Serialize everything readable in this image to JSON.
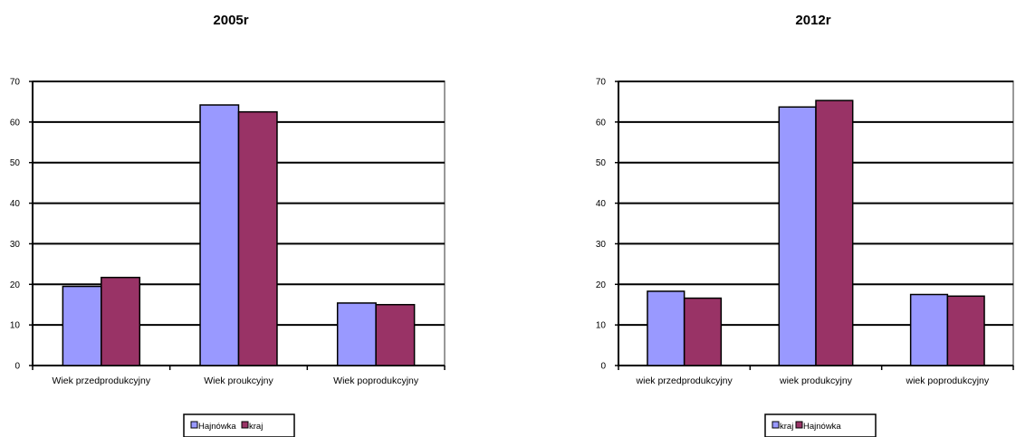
{
  "chart_data": [
    {
      "type": "bar",
      "title": "2005r",
      "categories": [
        "Wiek przedprodukcyjny",
        "Wiek proukcyjny",
        "Wiek poprodukcyjny"
      ],
      "series": [
        {
          "name": "Hajnówka",
          "color": "#9999FF",
          "values": [
            19.5,
            64.2,
            15.4
          ]
        },
        {
          "name": "kraj",
          "color": "#993366",
          "values": [
            21.7,
            62.5,
            15.0
          ]
        }
      ],
      "ylim": [
        0,
        70
      ],
      "yticks": [
        0,
        10,
        20,
        30,
        40,
        50,
        60,
        70
      ],
      "grid": true,
      "legend_position": "bottom"
    },
    {
      "type": "bar",
      "title": "2012r",
      "categories": [
        "wiek przedprodukcyjny",
        "wiek produkcyjny",
        "wiek poprodukcyjny"
      ],
      "series": [
        {
          "name": "kraj",
          "color": "#9999FF",
          "values": [
            18.3,
            63.7,
            17.5
          ]
        },
        {
          "name": "Hajnówka",
          "color": "#993366",
          "values": [
            16.6,
            65.3,
            17.1
          ]
        }
      ],
      "ylim": [
        0,
        70
      ],
      "yticks": [
        0,
        10,
        20,
        30,
        40,
        50,
        60,
        70
      ],
      "grid": true,
      "legend_position": "bottom"
    }
  ]
}
